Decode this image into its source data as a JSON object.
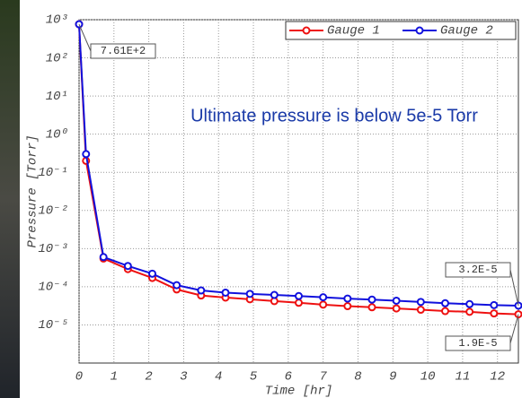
{
  "chart_data": {
    "type": "line",
    "log_y": true,
    "grid": true,
    "legend": "top-right",
    "xlabel": "Time [hr]",
    "ylabel": "Pressure [Torr]",
    "annotations": [
      "Ultimate pressure is below 5e-5 Torr",
      "7.61E+2",
      "3.2E-5",
      "1.9E-5"
    ],
    "x": [
      0,
      0.2,
      0.7,
      1.4,
      2.1,
      2.8,
      3.5,
      4.2,
      4.9,
      5.6,
      6.3,
      7.0,
      7.7,
      8.4,
      9.1,
      9.8,
      10.5,
      11.2,
      11.9,
      12.6
    ],
    "series": [
      {
        "name": "Gauge 1",
        "color": "#ee1111",
        "values": [
          761,
          0.2,
          0.00055,
          0.00029,
          0.00017,
          8.5e-05,
          5.9e-05,
          5.2e-05,
          4.7e-05,
          4.2e-05,
          3.8e-05,
          3.4e-05,
          3.1e-05,
          2.9e-05,
          2.7e-05,
          2.5e-05,
          2.3e-05,
          2.2e-05,
          2e-05,
          1.9e-05
        ]
      },
      {
        "name": "Gauge 2",
        "color": "#1111dd",
        "values": [
          761,
          0.3,
          0.0006,
          0.00035,
          0.00022,
          0.00011,
          8e-05,
          7e-05,
          6.5e-05,
          6.1e-05,
          5.7e-05,
          5.3e-05,
          4.9e-05,
          4.6e-05,
          4.3e-05,
          4e-05,
          3.7e-05,
          3.5e-05,
          3.3e-05,
          3.2e-05
        ]
      }
    ],
    "xlim": [
      0,
      12.6
    ],
    "xticks": [
      0,
      1,
      2,
      3,
      4,
      5,
      6,
      7,
      8,
      9,
      10,
      11,
      12
    ],
    "ylim": [
      1e-06,
      1000
    ],
    "yticks": [
      {
        "value": 1e-05,
        "label": "10⁻⁵"
      },
      {
        "value": 0.0001,
        "label": "10⁻⁴"
      },
      {
        "value": 0.001,
        "label": "10⁻³"
      },
      {
        "value": 0.01,
        "label": "10⁻²"
      },
      {
        "value": 0.1,
        "label": "10⁻¹"
      },
      {
        "value": 1,
        "label": "10⁰"
      },
      {
        "value": 10,
        "label": "10¹"
      },
      {
        "value": 100,
        "label": "10²"
      },
      {
        "value": 1000,
        "label": "10³"
      }
    ]
  }
}
